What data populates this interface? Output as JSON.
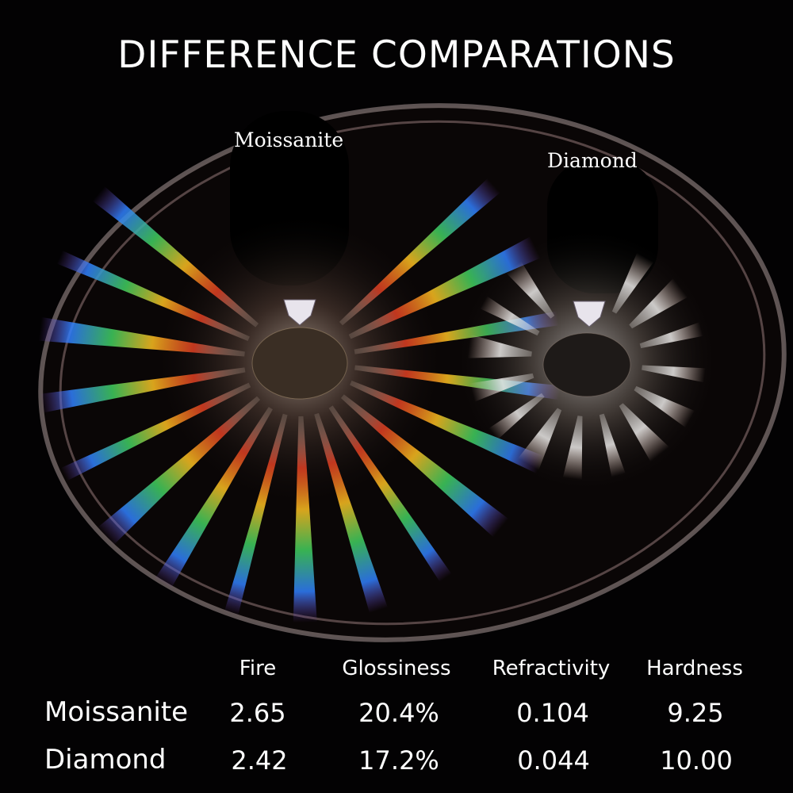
{
  "title": "DIFFERENCE COMPARATIONS",
  "photo": {
    "left_label": "Moissanite",
    "right_label": "Diamond"
  },
  "table": {
    "headers": [
      "Fire",
      "Glossiness",
      "Refractivity",
      "Hardness"
    ],
    "rows": [
      {
        "label": "Moissanite",
        "values": [
          "2.65",
          "20.4%",
          "0.104",
          "9.25"
        ]
      },
      {
        "label": "Diamond",
        "values": [
          "2.42",
          "17.2%",
          "0.044",
          "10.00"
        ]
      }
    ]
  },
  "colors": {
    "background": "#030203",
    "text": "#ffffff"
  }
}
